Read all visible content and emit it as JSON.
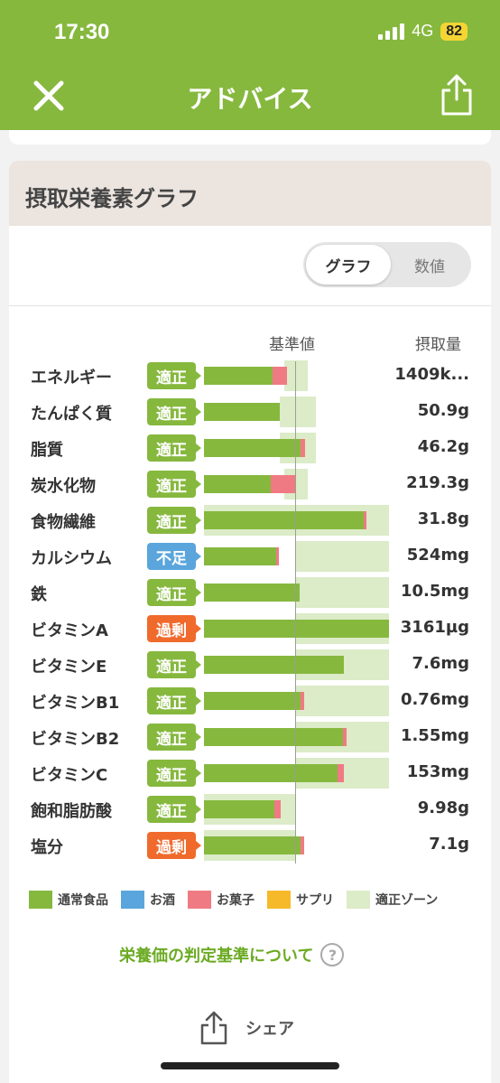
{
  "status": {
    "time": "17:30",
    "network": "4G",
    "battery": "82"
  },
  "nav": {
    "title": "アドバイス"
  },
  "card": {
    "title": "摂取栄養素グラフ"
  },
  "toggle": {
    "graph": "グラフ",
    "numbers": "数値"
  },
  "columns": {
    "reference": "基準値",
    "intake": "摂取量"
  },
  "colors": {
    "proper": "#86b83e",
    "deficient": "#5aa5dc",
    "excess": "#f06a2c",
    "snack": "#f07a83",
    "zone": "#dcebc8"
  },
  "rows": [
    {
      "name": "エネルギー",
      "status": "適正",
      "kind": "proper",
      "value": "1409k..."
    },
    {
      "name": "たんぱく質",
      "status": "適正",
      "kind": "proper",
      "value": "50.9g"
    },
    {
      "name": "脂質",
      "status": "適正",
      "kind": "proper",
      "value": "46.2g"
    },
    {
      "name": "炭水化物",
      "status": "適正",
      "kind": "proper",
      "value": "219.3g"
    },
    {
      "name": "食物繊維",
      "status": "適正",
      "kind": "proper",
      "value": "31.8g"
    },
    {
      "name": "カルシウム",
      "status": "不足",
      "kind": "deficient",
      "value": "524mg"
    },
    {
      "name": "鉄",
      "status": "適正",
      "kind": "proper",
      "value": "10.5mg"
    },
    {
      "name": "ビタミンA",
      "status": "過剰",
      "kind": "excess",
      "value": "3161µg"
    },
    {
      "name": "ビタミンE",
      "status": "適正",
      "kind": "proper",
      "value": "7.6mg"
    },
    {
      "name": "ビタミンB1",
      "status": "適正",
      "kind": "proper",
      "value": "0.76mg"
    },
    {
      "name": "ビタミンB2",
      "status": "適正",
      "kind": "proper",
      "value": "1.55mg"
    },
    {
      "name": "ビタミンC",
      "status": "適正",
      "kind": "proper",
      "value": "153mg"
    },
    {
      "name": "飽和脂肪酸",
      "status": "適正",
      "kind": "proper",
      "value": "9.98g"
    },
    {
      "name": "塩分",
      "status": "過剰",
      "kind": "excess",
      "value": "7.1g"
    }
  ],
  "legend": [
    {
      "label": "通常食品",
      "color": "#86b83e"
    },
    {
      "label": "お酒",
      "color": "#5aa5dc"
    },
    {
      "label": "お菓子",
      "color": "#f07a83"
    },
    {
      "label": "サプリ",
      "color": "#f6b92a"
    },
    {
      "label": "適正ゾーン",
      "color": "#dcebc8"
    }
  ],
  "links": {
    "judge": "栄養価の判定基準について",
    "share": "シェア"
  }
}
